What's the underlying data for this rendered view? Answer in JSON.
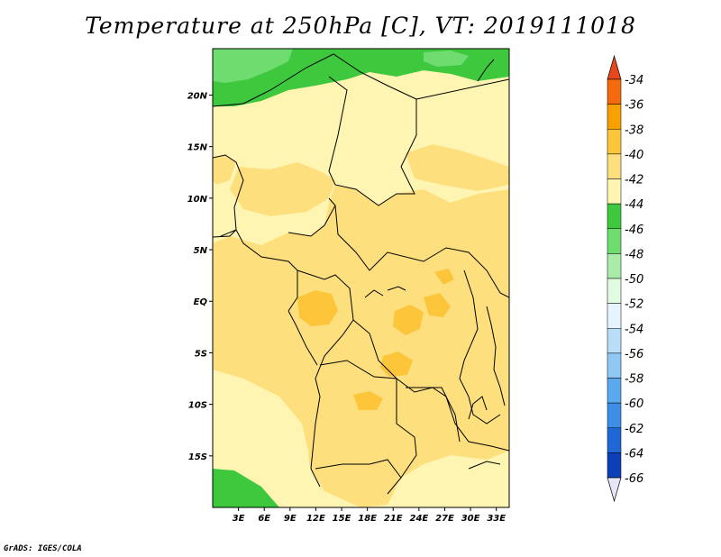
{
  "title": "Temperature at 250hPa [C], VT: 2019111018",
  "credit": "GrADS: IGES/COLA",
  "map": {
    "lon_range": [
      0,
      34.5
    ],
    "lat_range": [
      -20,
      24.5
    ],
    "lat_ticks": [
      {
        "value": 20,
        "label": "20N"
      },
      {
        "value": 15,
        "label": "15N"
      },
      {
        "value": 10,
        "label": "10N"
      },
      {
        "value": 5,
        "label": "5N"
      },
      {
        "value": 0,
        "label": "EQ"
      },
      {
        "value": -5,
        "label": "5S"
      },
      {
        "value": -10,
        "label": "10S"
      },
      {
        "value": -15,
        "label": "15S"
      }
    ],
    "lon_ticks": [
      {
        "value": 3,
        "label": "3E"
      },
      {
        "value": 6,
        "label": "6E"
      },
      {
        "value": 9,
        "label": "9E"
      },
      {
        "value": 12,
        "label": "12E"
      },
      {
        "value": 15,
        "label": "15E"
      },
      {
        "value": 18,
        "label": "18E"
      },
      {
        "value": 21,
        "label": "21E"
      },
      {
        "value": 24,
        "label": "24E"
      },
      {
        "value": 27,
        "label": "27E"
      },
      {
        "value": 30,
        "label": "30E"
      },
      {
        "value": 33,
        "label": "33E"
      }
    ]
  },
  "colorbar": {
    "labels": [
      "-34",
      "-36",
      "-38",
      "-40",
      "-42",
      "-44",
      "-46",
      "-48",
      "-50",
      "-52",
      "-54",
      "-56",
      "-58",
      "-60",
      "-62",
      "-64",
      "-66"
    ],
    "top_triangle_color": "#e8461c",
    "bottom_triangle_color": "#e6e6fa",
    "segment_colors": [
      "#f46a0c",
      "#f7a000",
      "#fcc53a",
      "#fde07d",
      "#fef5b2",
      "#3ec83e",
      "#6fdc6f",
      "#a8eca8",
      "#e0fbe0",
      "#e6f4ff",
      "#b8def8",
      "#8fc8f4",
      "#5aa8ee",
      "#3d8ee6",
      "#1f66d6",
      "#0c3fb8",
      "#05106e"
    ]
  },
  "regions": [
    {
      "level": "-44",
      "color": "#3ec83e"
    },
    {
      "level": "-46",
      "color": "#6fdc6f"
    },
    {
      "level": "-42",
      "color": "#fef5b2"
    },
    {
      "level": "-40",
      "color": "#fde07d"
    },
    {
      "level": "-38",
      "color": "#fcc53a"
    }
  ]
}
